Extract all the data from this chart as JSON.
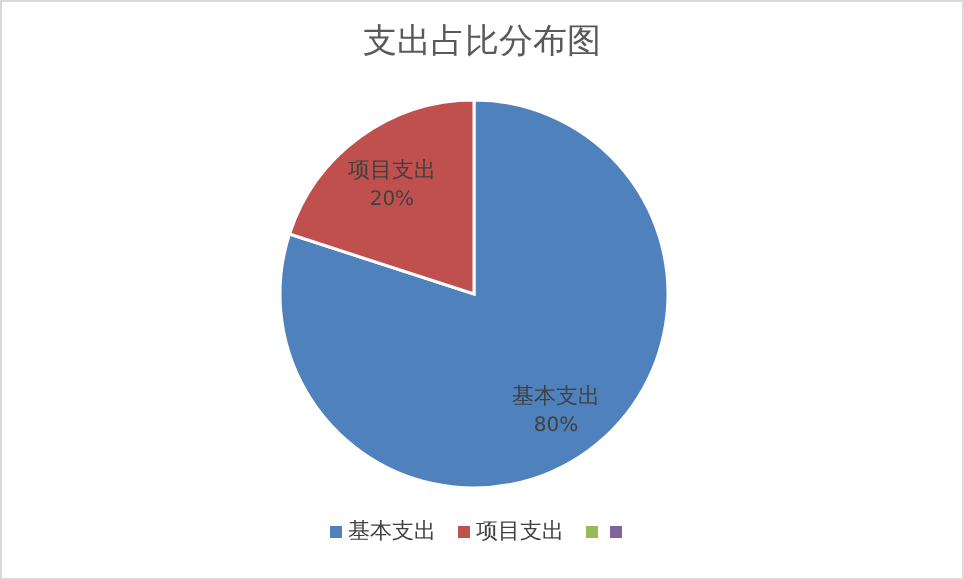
{
  "chart_data": {
    "type": "pie",
    "title": "支出占比分布图",
    "categories": [
      "基本支出",
      "项目支出",
      null,
      null
    ],
    "values": [
      80,
      20,
      0,
      0
    ],
    "colors": [
      "#4f81bd",
      "#c0504d",
      "#9bbb59",
      "#8064a2"
    ],
    "value_labels": [
      "80%",
      "20%",
      null,
      null
    ],
    "legend": "bottom"
  }
}
